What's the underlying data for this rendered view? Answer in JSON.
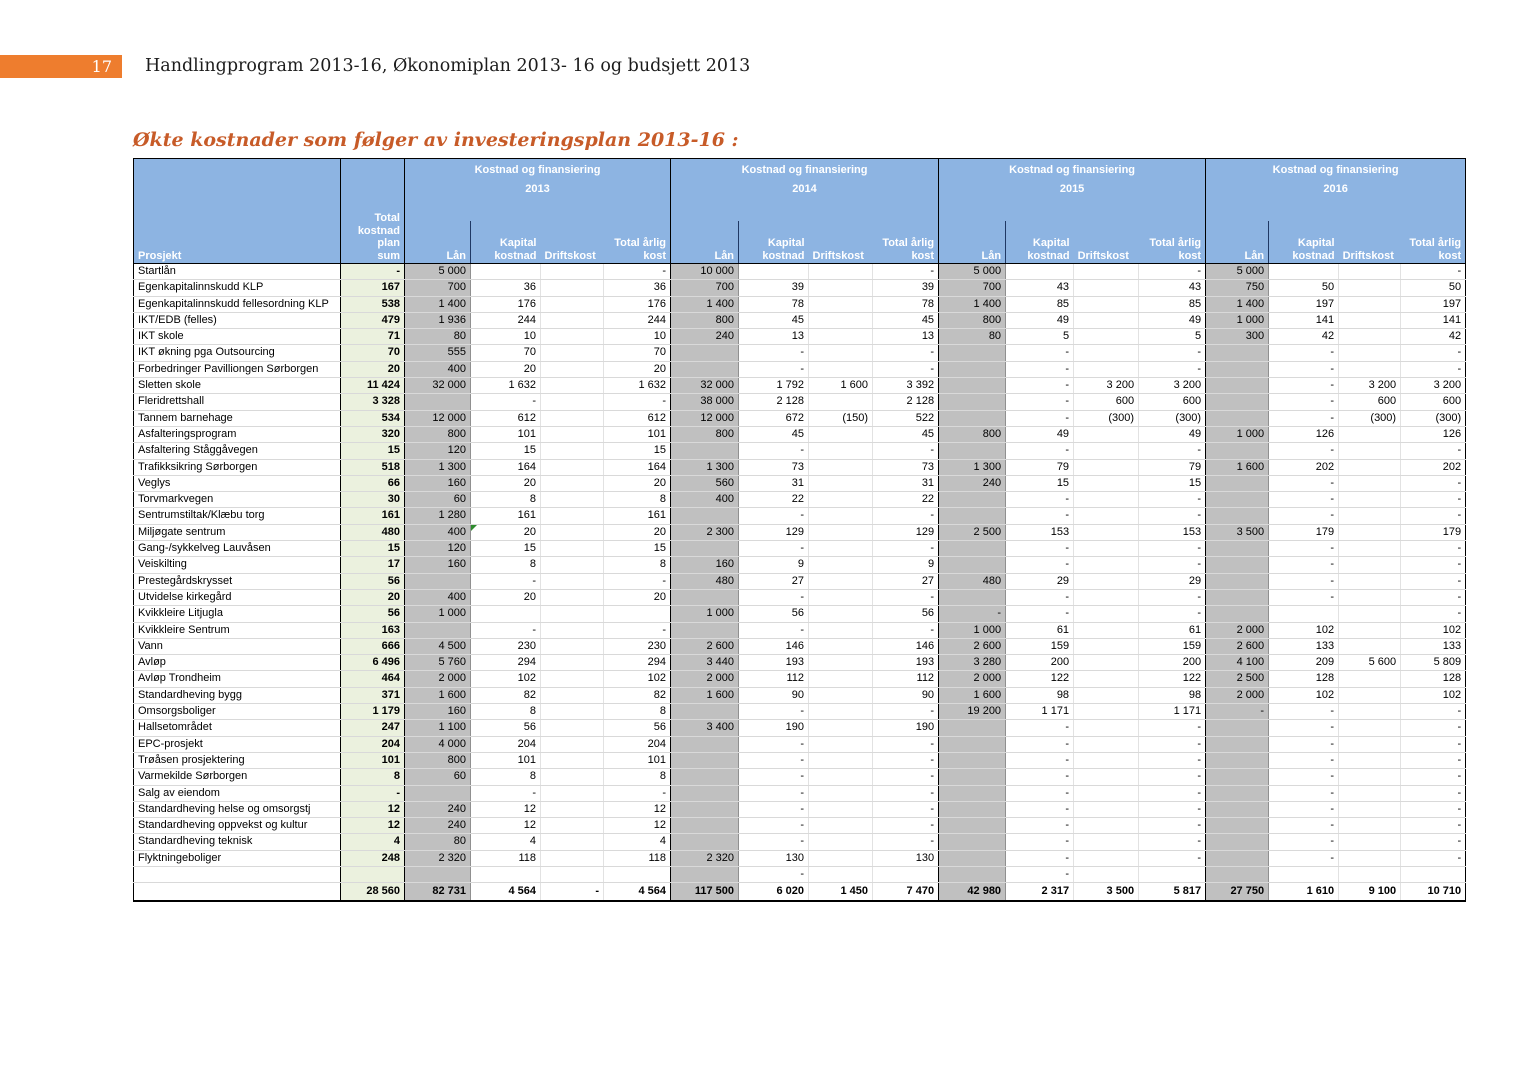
{
  "page": {
    "number": "17",
    "header_title": "Handlingprogram 2013-16, Økonomiplan 2013- 16 og budsjett 2013",
    "section_title": "Økte kostnader som følger av investeringsplan 2013-16 :"
  },
  "colors": {
    "accent_orange": "#EE7D2E",
    "title_orange": "#C75B28",
    "header_blue": "#8DB4E2",
    "loan_column_gray": "#C0C0C0",
    "total_column_green": "#EBF1DE"
  },
  "table": {
    "corner_header": "Prosjekt",
    "total_col_header": "Total\nkostnad\nplan\nsum",
    "group_header": "Kostnad og finansiering",
    "years": [
      "2013",
      "2014",
      "2015",
      "2016"
    ],
    "sub_lan": "Lån",
    "sub_kap": "Kapital\nkostnad",
    "sub_drift": "Driftskost",
    "sub_tot": "Total årlig\nkost",
    "rows": [
      {
        "name": "Startlån",
        "total": "-",
        "years": [
          [
            "5 000",
            "",
            "",
            "-"
          ],
          [
            "10 000",
            "",
            "",
            "-"
          ],
          [
            "5 000",
            "",
            "",
            "-"
          ],
          [
            "5 000",
            "",
            "",
            "-"
          ]
        ]
      },
      {
        "name": "Egenkapitalinnskudd KLP",
        "total": "167",
        "years": [
          [
            "700",
            "36",
            "",
            "36"
          ],
          [
            "700",
            "39",
            "",
            "39"
          ],
          [
            "700",
            "43",
            "",
            "43"
          ],
          [
            "750",
            "50",
            "",
            "50"
          ]
        ]
      },
      {
        "name": "Egenkapitalinnskudd fellesordning KLP",
        "total": "538",
        "years": [
          [
            "1 400",
            "176",
            "",
            "176"
          ],
          [
            "1 400",
            "78",
            "",
            "78"
          ],
          [
            "1 400",
            "85",
            "",
            "85"
          ],
          [
            "1 400",
            "197",
            "",
            "197"
          ]
        ]
      },
      {
        "name": "IKT/EDB (felles)",
        "total": "479",
        "years": [
          [
            "1 936",
            "244",
            "",
            "244"
          ],
          [
            "800",
            "45",
            "",
            "45"
          ],
          [
            "800",
            "49",
            "",
            "49"
          ],
          [
            "1 000",
            "141",
            "",
            "141"
          ]
        ]
      },
      {
        "name": "IKT skole",
        "total": "71",
        "years": [
          [
            "80",
            "10",
            "",
            "10"
          ],
          [
            "240",
            "13",
            "",
            "13"
          ],
          [
            "80",
            "5",
            "",
            "5"
          ],
          [
            "300",
            "42",
            "",
            "42"
          ]
        ]
      },
      {
        "name": "IKT økning pga Outsourcing",
        "total": "70",
        "years": [
          [
            "555",
            "70",
            "",
            "70"
          ],
          [
            "",
            "-",
            "",
            "-"
          ],
          [
            "",
            "-",
            "",
            "-"
          ],
          [
            "",
            "-",
            "",
            "-"
          ]
        ]
      },
      {
        "name": "Forbedringer Pavilliongen Sørborgen",
        "total": "20",
        "years": [
          [
            "400",
            "20",
            "",
            "20"
          ],
          [
            "",
            "-",
            "",
            "-"
          ],
          [
            "",
            "-",
            "",
            "-"
          ],
          [
            "",
            "-",
            "",
            "-"
          ]
        ]
      },
      {
        "name": "Sletten skole",
        "total": "11 424",
        "years": [
          [
            "32 000",
            "1 632",
            "",
            "1 632"
          ],
          [
            "32 000",
            "1 792",
            "1 600",
            "3 392"
          ],
          [
            "",
            "-",
            "3 200",
            "3 200"
          ],
          [
            "",
            "-",
            "3 200",
            "3 200"
          ]
        ]
      },
      {
        "name": "Fleridrettshall",
        "total": "3 328",
        "years": [
          [
            "",
            "-",
            "",
            "-"
          ],
          [
            "38 000",
            "2 128",
            "",
            "2 128"
          ],
          [
            "",
            "-",
            "600",
            "600"
          ],
          [
            "",
            "-",
            "600",
            "600"
          ]
        ]
      },
      {
        "name": "Tannem barnehage",
        "total": "534",
        "years": [
          [
            "12 000",
            "612",
            "",
            "612"
          ],
          [
            "12 000",
            "672",
            "(150)",
            "522"
          ],
          [
            "",
            "-",
            "(300)",
            "(300)"
          ],
          [
            "",
            "-",
            "(300)",
            "(300)"
          ]
        ]
      },
      {
        "name": "Asfalteringsprogram",
        "total": "320",
        "years": [
          [
            "800",
            "101",
            "",
            "101"
          ],
          [
            "800",
            "45",
            "",
            "45"
          ],
          [
            "800",
            "49",
            "",
            "49"
          ],
          [
            "1 000",
            "126",
            "",
            "126"
          ]
        ]
      },
      {
        "name": "Asfaltering Ståggåvegen",
        "total": "15",
        "years": [
          [
            "120",
            "15",
            "",
            "15"
          ],
          [
            "",
            "-",
            "",
            "-"
          ],
          [
            "",
            "-",
            "",
            "-"
          ],
          [
            "",
            "-",
            "",
            "-"
          ]
        ]
      },
      {
        "name": "Trafikksikring Sørborgen",
        "total": "518",
        "years": [
          [
            "1 300",
            "164",
            "",
            "164"
          ],
          [
            "1 300",
            "73",
            "",
            "73"
          ],
          [
            "1 300",
            "79",
            "",
            "79"
          ],
          [
            "1 600",
            "202",
            "",
            "202"
          ]
        ]
      },
      {
        "name": "Veglys",
        "total": "66",
        "years": [
          [
            "160",
            "20",
            "",
            "20"
          ],
          [
            "560",
            "31",
            "",
            "31"
          ],
          [
            "240",
            "15",
            "",
            "15"
          ],
          [
            "",
            "-",
            "",
            "-"
          ]
        ]
      },
      {
        "name": "Torvmarkvegen",
        "total": "30",
        "years": [
          [
            "60",
            "8",
            "",
            "8"
          ],
          [
            "400",
            "22",
            "",
            "22"
          ],
          [
            "",
            "-",
            "",
            "-"
          ],
          [
            "",
            "-",
            "",
            "-"
          ]
        ]
      },
      {
        "name": "Sentrumstiltak/Klæbu torg",
        "total": "161",
        "years": [
          [
            "1 280",
            "161",
            "",
            "161"
          ],
          [
            "",
            "-",
            "",
            "-"
          ],
          [
            "",
            "-",
            "",
            "-"
          ],
          [
            "",
            "-",
            "",
            "-"
          ]
        ]
      },
      {
        "name": "Miljøgate sentrum",
        "total": "480",
        "flag": {
          "year": 0
        },
        "years": [
          [
            "400",
            "20",
            "",
            "20"
          ],
          [
            "2 300",
            "129",
            "",
            "129"
          ],
          [
            "2 500",
            "153",
            "",
            "153"
          ],
          [
            "3 500",
            "179",
            "",
            "179"
          ]
        ]
      },
      {
        "name": "Gang-/sykkelveg Lauvåsen",
        "total": "15",
        "years": [
          [
            "120",
            "15",
            "",
            "15"
          ],
          [
            "",
            "-",
            "",
            "-"
          ],
          [
            "",
            "-",
            "",
            "-"
          ],
          [
            "",
            "-",
            "",
            "-"
          ]
        ]
      },
      {
        "name": "Veiskilting",
        "total": "17",
        "years": [
          [
            "160",
            "8",
            "",
            "8"
          ],
          [
            "160",
            "9",
            "",
            "9"
          ],
          [
            "",
            "-",
            "",
            "-"
          ],
          [
            "",
            "-",
            "",
            "-"
          ]
        ]
      },
      {
        "name": "Prestegårdskrysset",
        "total": "56",
        "years": [
          [
            "",
            "-",
            "",
            "-"
          ],
          [
            "480",
            "27",
            "",
            "27"
          ],
          [
            "480",
            "29",
            "",
            "29"
          ],
          [
            "",
            "-",
            "",
            "-"
          ]
        ]
      },
      {
        "name": "Utvidelse kirkegård",
        "total": "20",
        "years": [
          [
            "400",
            "20",
            "",
            "20"
          ],
          [
            "",
            "-",
            "",
            "-"
          ],
          [
            "",
            "-",
            "",
            "-"
          ],
          [
            "",
            "-",
            "",
            "-"
          ]
        ]
      },
      {
        "name": "Kvikkleire Litjugla",
        "total": "56",
        "years": [
          [
            "1 000",
            "",
            "",
            ""
          ],
          [
            "1 000",
            "56",
            "",
            "56"
          ],
          [
            "-",
            "-",
            "",
            "-"
          ],
          [
            "",
            "",
            "",
            "-"
          ]
        ]
      },
      {
        "name": "Kvikkleire Sentrum",
        "total": "163",
        "years": [
          [
            "",
            "-",
            "",
            "-"
          ],
          [
            "",
            "-",
            "",
            "-"
          ],
          [
            "1 000",
            "61",
            "",
            "61"
          ],
          [
            "2 000",
            "102",
            "",
            "102"
          ]
        ]
      },
      {
        "name": "Vann",
        "total": "666",
        "years": [
          [
            "4 500",
            "230",
            "",
            "230"
          ],
          [
            "2 600",
            "146",
            "",
            "146"
          ],
          [
            "2 600",
            "159",
            "",
            "159"
          ],
          [
            "2 600",
            "133",
            "",
            "133"
          ]
        ]
      },
      {
        "name": "Avløp",
        "total": "6 496",
        "years": [
          [
            "5 760",
            "294",
            "",
            "294"
          ],
          [
            "3 440",
            "193",
            "",
            "193"
          ],
          [
            "3 280",
            "200",
            "",
            "200"
          ],
          [
            "4 100",
            "209",
            "5 600",
            "5 809"
          ]
        ]
      },
      {
        "name": "Avløp Trondheim",
        "total": "464",
        "years": [
          [
            "2 000",
            "102",
            "",
            "102"
          ],
          [
            "2 000",
            "112",
            "",
            "112"
          ],
          [
            "2 000",
            "122",
            "",
            "122"
          ],
          [
            "2 500",
            "128",
            "",
            "128"
          ]
        ]
      },
      {
        "name": "Standardheving bygg",
        "total": "371",
        "years": [
          [
            "1 600",
            "82",
            "",
            "82"
          ],
          [
            "1 600",
            "90",
            "",
            "90"
          ],
          [
            "1 600",
            "98",
            "",
            "98"
          ],
          [
            "2 000",
            "102",
            "",
            "102"
          ]
        ]
      },
      {
        "name": "Omsorgsboliger",
        "total": "1 179",
        "years": [
          [
            "160",
            "8",
            "",
            "8"
          ],
          [
            "",
            "-",
            "",
            "-"
          ],
          [
            "19 200",
            "1 171",
            "",
            "1 171"
          ],
          [
            "-",
            "-",
            "",
            "-"
          ]
        ]
      },
      {
        "name": "Hallsetområdet",
        "total": "247",
        "years": [
          [
            "1 100",
            "56",
            "",
            "56"
          ],
          [
            "3 400",
            "190",
            "",
            "190"
          ],
          [
            "",
            "-",
            "",
            "-"
          ],
          [
            "",
            "-",
            "",
            "-"
          ]
        ]
      },
      {
        "name": "EPC-prosjekt",
        "total": "204",
        "years": [
          [
            "4 000",
            "204",
            "",
            "204"
          ],
          [
            "",
            "-",
            "",
            "-"
          ],
          [
            "",
            "-",
            "",
            "-"
          ],
          [
            "",
            "-",
            "",
            "-"
          ]
        ]
      },
      {
        "name": "Trøåsen prosjektering",
        "total": "101",
        "years": [
          [
            "800",
            "101",
            "",
            "101"
          ],
          [
            "",
            "-",
            "",
            "-"
          ],
          [
            "",
            "-",
            "",
            "-"
          ],
          [
            "",
            "-",
            "",
            "-"
          ]
        ]
      },
      {
        "name": "Varmekilde Sørborgen",
        "total": "8",
        "years": [
          [
            "60",
            "8",
            "",
            "8"
          ],
          [
            "",
            "-",
            "",
            "-"
          ],
          [
            "",
            "-",
            "",
            "-"
          ],
          [
            "",
            "-",
            "",
            "-"
          ]
        ]
      },
      {
        "name": "Salg av eiendom",
        "total": "-",
        "years": [
          [
            "",
            "-",
            "",
            "-"
          ],
          [
            "",
            "-",
            "",
            "-"
          ],
          [
            "",
            "-",
            "",
            "-"
          ],
          [
            "",
            "-",
            "",
            "-"
          ]
        ]
      },
      {
        "name": "Standardheving helse og omsorgstj",
        "total": "12",
        "years": [
          [
            "240",
            "12",
            "",
            "12"
          ],
          [
            "",
            "-",
            "",
            "-"
          ],
          [
            "",
            "-",
            "",
            "-"
          ],
          [
            "",
            "-",
            "",
            "-"
          ]
        ]
      },
      {
        "name": "Standardheving oppvekst og kultur",
        "total": "12",
        "years": [
          [
            "240",
            "12",
            "",
            "12"
          ],
          [
            "",
            "-",
            "",
            "-"
          ],
          [
            "",
            "-",
            "",
            "-"
          ],
          [
            "",
            "-",
            "",
            "-"
          ]
        ]
      },
      {
        "name": "Standardheving teknisk",
        "total": "4",
        "years": [
          [
            "80",
            "4",
            "",
            "4"
          ],
          [
            "",
            "-",
            "",
            "-"
          ],
          [
            "",
            "-",
            "",
            "-"
          ],
          [
            "",
            "-",
            "",
            "-"
          ]
        ]
      },
      {
        "name": "Flyktningeboliger",
        "total": "248",
        "years": [
          [
            "2 320",
            "118",
            "",
            "118"
          ],
          [
            "2 320",
            "130",
            "",
            "130"
          ],
          [
            "",
            "-",
            "",
            "-"
          ],
          [
            "",
            "-",
            "",
            "-"
          ]
        ]
      },
      {
        "name": "",
        "total": "",
        "years": [
          [
            "",
            "",
            "",
            ""
          ],
          [
            "",
            "-",
            "",
            ""
          ],
          [
            "",
            "-",
            "",
            ""
          ],
          [
            "",
            "",
            "",
            ""
          ]
        ]
      }
    ],
    "total_row": {
      "is_total": true,
      "name": "",
      "total": "28 560",
      "years": [
        [
          "82 731",
          "4 564",
          "-",
          "4 564"
        ],
        [
          "117 500",
          "6 020",
          "1 450",
          "7 470"
        ],
        [
          "42 980",
          "2 317",
          "3 500",
          "5 817"
        ],
        [
          "27 750",
          "1 610",
          "9 100",
          "10 710"
        ]
      ]
    }
  }
}
